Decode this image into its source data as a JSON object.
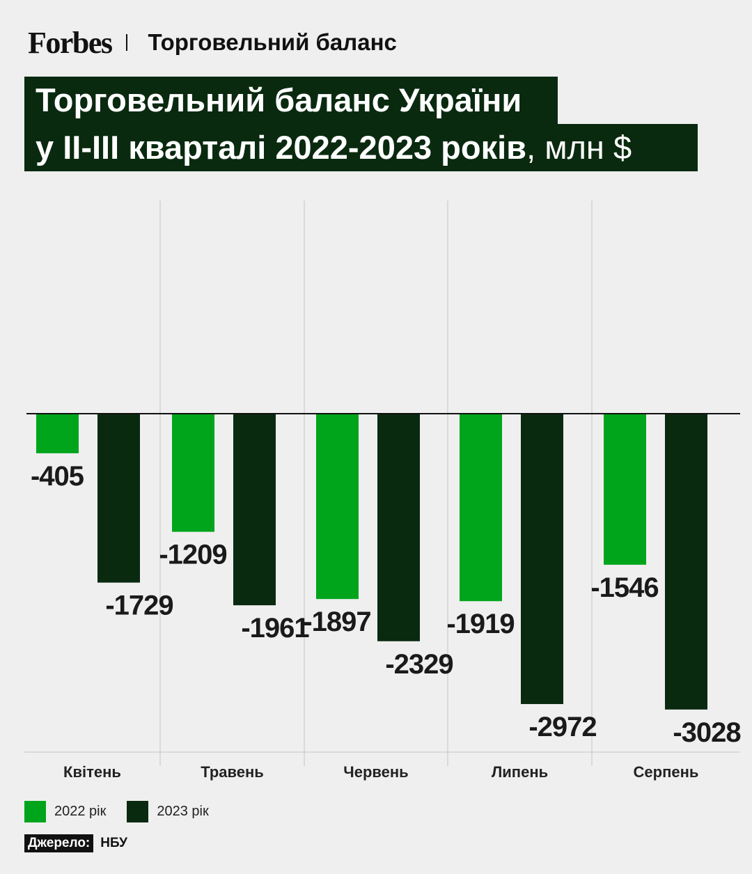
{
  "header": {
    "logo": "Forbes",
    "section": "Торговельний баланс"
  },
  "title": {
    "line1": "Торговельний баланс України",
    "line2": "у ІІ-ІІІ кварталі 2022-2023 років",
    "unit": ", млн $"
  },
  "chart_data": {
    "type": "bar",
    "title": "Торговельний баланс України у ІІ-ІІІ кварталі 2022-2023 років, млн $",
    "categories": [
      "Квітень",
      "Травень",
      "Червень",
      "Липень",
      "Серпень"
    ],
    "series": [
      {
        "name": "2022 рік",
        "values": [
          -405,
          -1209,
          -1897,
          -1919,
          -1546
        ],
        "color": "#00a51b"
      },
      {
        "name": "2023 рік",
        "values": [
          -1729,
          -1961,
          -2329,
          -2972,
          -3028
        ],
        "color": "#0a2a10"
      }
    ],
    "ylim": [
      -3400,
      2100
    ],
    "grid": "vertical separators between categories",
    "legend": "bottom-left"
  },
  "legend": {
    "items": [
      {
        "label": "2022 рік",
        "color": "#00a51b"
      },
      {
        "label": "2023 рік",
        "color": "#0a2a10"
      }
    ]
  },
  "source": {
    "label": "Джерело:",
    "value": "НБУ"
  }
}
